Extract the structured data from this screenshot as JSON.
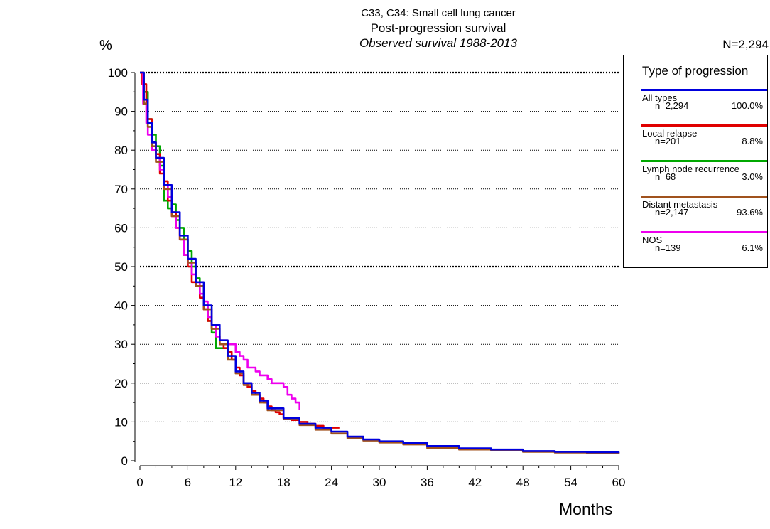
{
  "chart_data": {
    "type": "line",
    "step": true,
    "title": "C33, C34: Small cell lung cancer",
    "subtitle": "Post-progression survival",
    "subtitle2": "Observed survival 1988-2013",
    "ylabel": "%",
    "xlabel": "Months",
    "n_total": "N=2,294",
    "xlim": [
      0,
      60
    ],
    "ylim": [
      0,
      100
    ],
    "x_ticks": [
      0,
      6,
      12,
      18,
      24,
      30,
      36,
      42,
      48,
      54,
      60
    ],
    "y_ticks": [
      0,
      10,
      20,
      30,
      40,
      50,
      60,
      70,
      80,
      90,
      100
    ],
    "grid": "horizontal dotted",
    "legend_position": "right",
    "legend_title": "Type of progression",
    "series": [
      {
        "name": "All types",
        "n": "n=2,294",
        "pct": "100.0%",
        "color": "#0000dd",
        "x": [
          0,
          0.5,
          1,
          1.5,
          2,
          3,
          4,
          5,
          6,
          7,
          8,
          9,
          10,
          11,
          12,
          13,
          14,
          15,
          16,
          18,
          20,
          22,
          24,
          26,
          28,
          30,
          33,
          36,
          40,
          44,
          48,
          52,
          56,
          60
        ],
        "y": [
          100,
          93,
          87,
          82,
          78,
          71,
          64,
          58,
          52,
          46,
          40,
          35,
          31,
          27,
          23,
          20,
          17.5,
          15.5,
          13.5,
          11,
          9.5,
          8.5,
          7.5,
          6.2,
          5.5,
          5.0,
          4.6,
          3.8,
          3.2,
          2.9,
          2.5,
          2.3,
          2.2,
          2.0
        ]
      },
      {
        "name": "Local relapse",
        "n": "n=201",
        "pct": "8.8%",
        "color": "#e00000",
        "x": [
          0,
          0.3,
          0.8,
          1,
          1.5,
          2,
          2.5,
          3,
          3.5,
          4,
          4.5,
          5,
          5.5,
          6,
          6.5,
          7,
          7.5,
          8,
          8.5,
          9,
          9.5,
          10,
          10.5,
          11,
          11.5,
          12,
          12.5,
          13,
          13.5,
          14,
          14.5,
          15,
          15.5,
          16,
          16.5,
          17,
          17.5,
          18,
          18.5,
          19,
          20,
          21,
          22,
          23,
          24,
          25
        ],
        "y": [
          100,
          97,
          92,
          88,
          82,
          79,
          74,
          72,
          67,
          64,
          60,
          57,
          53,
          50,
          46,
          45,
          42,
          39,
          36,
          34,
          32,
          30,
          29,
          28,
          26,
          24,
          22,
          20,
          19,
          18,
          17,
          16,
          15,
          14,
          13,
          12.5,
          12,
          11,
          11,
          10.5,
          10,
          9.5,
          9,
          8.5,
          8.5,
          8.5
        ]
      },
      {
        "name": "Lymph node recurrence",
        "n": "n=68",
        "pct": "3.0%",
        "color": "#00a800",
        "x": [
          0,
          0.5,
          1,
          1.5,
          2,
          2.5,
          3,
          3.5,
          4,
          4.5,
          5,
          5.5,
          6,
          6.5,
          7,
          7.5,
          8,
          8.5,
          9,
          9.5,
          10,
          10.5,
          11
        ],
        "y": [
          100,
          95,
          88,
          84,
          81,
          76,
          67,
          65,
          66,
          62,
          60,
          57,
          54,
          50,
          47,
          45,
          40,
          36,
          33,
          29,
          29,
          29,
          26
        ]
      },
      {
        "name": "Distant metastasis",
        "n": "n=2,147",
        "pct": "93.6%",
        "color": "#a0521d",
        "x": [
          0,
          0.5,
          1,
          1.5,
          2,
          3,
          4,
          5,
          6,
          7,
          8,
          9,
          10,
          11,
          12,
          13,
          14,
          15,
          16,
          18,
          20,
          22,
          24,
          26,
          28,
          30,
          33,
          36,
          40,
          44,
          48,
          52,
          56,
          60
        ],
        "y": [
          100,
          92,
          86,
          81,
          77,
          70,
          63,
          57,
          51,
          45,
          39,
          34,
          30,
          26,
          22.5,
          19.5,
          17,
          15,
          13,
          10.8,
          9.2,
          8.0,
          7.0,
          5.8,
          5.2,
          4.7,
          4.2,
          3.3,
          2.9,
          2.7,
          2.3,
          2.1,
          2.0,
          1.8
        ]
      },
      {
        "name": "NOS",
        "n": "n=139",
        "pct": "6.1%",
        "color": "#ee00ee",
        "x": [
          0,
          0.4,
          0.8,
          1,
          1.5,
          2,
          2.5,
          3,
          3.5,
          4,
          4.5,
          5,
          5.5,
          6,
          6.5,
          7,
          7.5,
          8,
          8.5,
          9,
          9.5,
          10,
          10.5,
          11,
          11.5,
          12,
          12.5,
          13,
          13.5,
          14,
          14.5,
          15,
          15.5,
          16,
          16.5,
          17,
          17.5,
          18,
          18.5,
          19,
          19.5,
          20
        ],
        "y": [
          100,
          92,
          87,
          84,
          80,
          78,
          75,
          71,
          68,
          63,
          60,
          57,
          53,
          51,
          48,
          46,
          43,
          41,
          37,
          35,
          32,
          31,
          31,
          30,
          30,
          28,
          27,
          26,
          24,
          24,
          23,
          22,
          22,
          21,
          20,
          20,
          20,
          19,
          17,
          16,
          15,
          13
        ]
      }
    ]
  }
}
